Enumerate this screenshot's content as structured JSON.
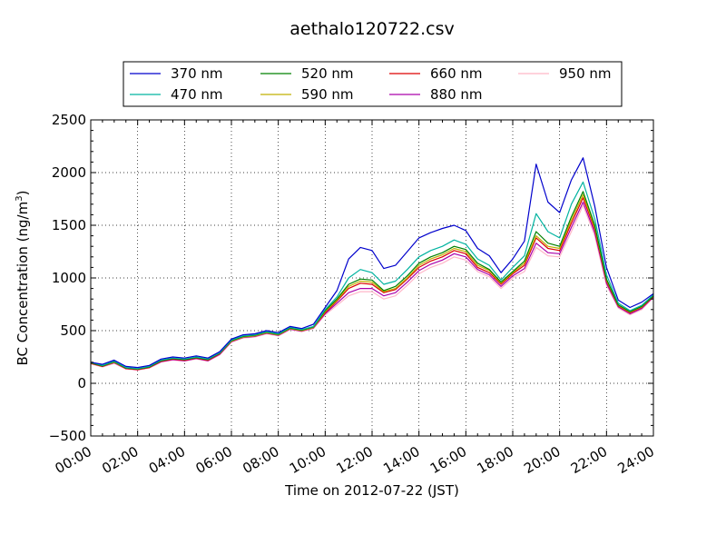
{
  "chart_data": {
    "type": "line",
    "title": "aethalo120722.csv",
    "xlabel": "Time on 2012-07-22 (JST)",
    "ylabel_main": "BC Concentration (ng/m",
    "ylabel_sup": "3",
    "ylabel_close": ")",
    "xlim": [
      0,
      24
    ],
    "ylim": [
      -500,
      2500
    ],
    "x_ticks": [
      0,
      2,
      4,
      6,
      8,
      10,
      12,
      14,
      16,
      18,
      20,
      22,
      24
    ],
    "x_tick_labels": [
      "00:00",
      "02:00",
      "04:00",
      "06:00",
      "08:00",
      "10:00",
      "12:00",
      "14:00",
      "16:00",
      "18:00",
      "20:00",
      "22:00",
      "24:00"
    ],
    "y_ticks": [
      -500,
      0,
      500,
      1000,
      1500,
      2000,
      2500
    ],
    "y_tick_labels": [
      "−500",
      "0",
      "500",
      "1000",
      "1500",
      "2000",
      "2500"
    ],
    "grid": true,
    "legend_position": "top, above plot",
    "x": [
      0,
      0.5,
      1,
      1.5,
      2,
      2.5,
      3,
      3.5,
      4,
      4.5,
      5,
      5.5,
      6,
      6.5,
      7,
      7.5,
      8,
      8.5,
      9,
      9.5,
      10,
      10.5,
      11,
      11.5,
      12,
      12.5,
      13,
      13.5,
      14,
      14.5,
      15,
      15.5,
      16,
      16.5,
      17,
      17.5,
      18,
      18.5,
      19,
      19.5,
      20,
      20.5,
      21,
      21.5,
      22,
      22.5,
      23,
      23.5,
      24
    ],
    "series": [
      {
        "name": "370 nm",
        "color": "#0000cc",
        "values": [
          200,
          180,
          220,
          160,
          150,
          170,
          230,
          250,
          240,
          260,
          240,
          300,
          420,
          460,
          470,
          500,
          480,
          540,
          520,
          560,
          720,
          880,
          1180,
          1290,
          1260,
          1090,
          1120,
          1250,
          1380,
          1430,
          1470,
          1500,
          1450,
          1280,
          1210,
          1050,
          1180,
          1350,
          2080,
          1720,
          1620,
          1930,
          2140,
          1680,
          1100,
          790,
          720,
          770,
          850
        ]
      },
      {
        "name": "470 nm",
        "color": "#00b3a0",
        "values": [
          200,
          170,
          210,
          150,
          140,
          160,
          220,
          240,
          230,
          250,
          230,
          290,
          410,
          450,
          460,
          490,
          470,
          530,
          510,
          540,
          700,
          820,
          1000,
          1080,
          1050,
          940,
          970,
          1080,
          1200,
          1260,
          1300,
          1360,
          1320,
          1180,
          1120,
          980,
          1100,
          1210,
          1610,
          1440,
          1380,
          1700,
          1910,
          1560,
          1030,
          760,
          690,
          740,
          840
        ]
      },
      {
        "name": "520 nm",
        "color": "#008000",
        "values": [
          195,
          165,
          205,
          145,
          135,
          155,
          215,
          235,
          225,
          245,
          225,
          285,
          405,
          445,
          455,
          485,
          465,
          525,
          505,
          535,
          690,
          800,
          940,
          990,
          980,
          880,
          920,
          1020,
          1140,
          1200,
          1240,
          1300,
          1270,
          1140,
          1080,
          960,
          1060,
          1160,
          1440,
          1330,
          1300,
          1580,
          1820,
          1500,
          990,
          745,
          680,
          730,
          830
        ]
      },
      {
        "name": "590 nm",
        "color": "#c0b000",
        "values": [
          195,
          165,
          200,
          145,
          135,
          155,
          215,
          235,
          225,
          245,
          225,
          285,
          400,
          440,
          450,
          480,
          460,
          520,
          500,
          530,
          680,
          790,
          920,
          970,
          960,
          870,
          900,
          1000,
          1120,
          1180,
          1220,
          1280,
          1250,
          1120,
          1070,
          950,
          1050,
          1140,
          1400,
          1300,
          1280,
          1550,
          1790,
          1480,
          980,
          740,
          675,
          725,
          830
        ]
      },
      {
        "name": "660 nm",
        "color": "#dd0000",
        "values": [
          190,
          160,
          200,
          140,
          130,
          150,
          210,
          230,
          220,
          240,
          220,
          280,
          400,
          440,
          450,
          480,
          460,
          520,
          500,
          530,
          670,
          780,
          900,
          950,
          940,
          860,
          890,
          990,
          1100,
          1160,
          1200,
          1260,
          1230,
          1100,
          1050,
          940,
          1040,
          1120,
          1380,
          1280,
          1260,
          1520,
          1760,
          1460,
          970,
          735,
          670,
          720,
          825
        ]
      },
      {
        "name": "880 nm",
        "color": "#aa00aa",
        "values": [
          190,
          160,
          195,
          140,
          130,
          150,
          205,
          225,
          215,
          235,
          215,
          275,
          395,
          435,
          445,
          475,
          455,
          515,
          495,
          525,
          660,
          760,
          860,
          900,
          900,
          830,
          860,
          960,
          1070,
          1130,
          1170,
          1230,
          1200,
          1080,
          1030,
          920,
          1020,
          1090,
          1330,
          1240,
          1230,
          1480,
          1720,
          1430,
          950,
          725,
          660,
          710,
          820
        ]
      },
      {
        "name": "950 nm",
        "color": "#ffb6c8",
        "values": [
          185,
          155,
          190,
          135,
          125,
          145,
          200,
          220,
          210,
          230,
          210,
          270,
          390,
          430,
          440,
          470,
          450,
          510,
          490,
          520,
          650,
          740,
          830,
          870,
          870,
          800,
          830,
          930,
          1040,
          1100,
          1140,
          1200,
          1170,
          1060,
          1010,
          900,
          1000,
          1060,
          1290,
          1210,
          1200,
          1440,
          1690,
          1400,
          930,
          715,
          650,
          700,
          815
        ]
      }
    ]
  }
}
